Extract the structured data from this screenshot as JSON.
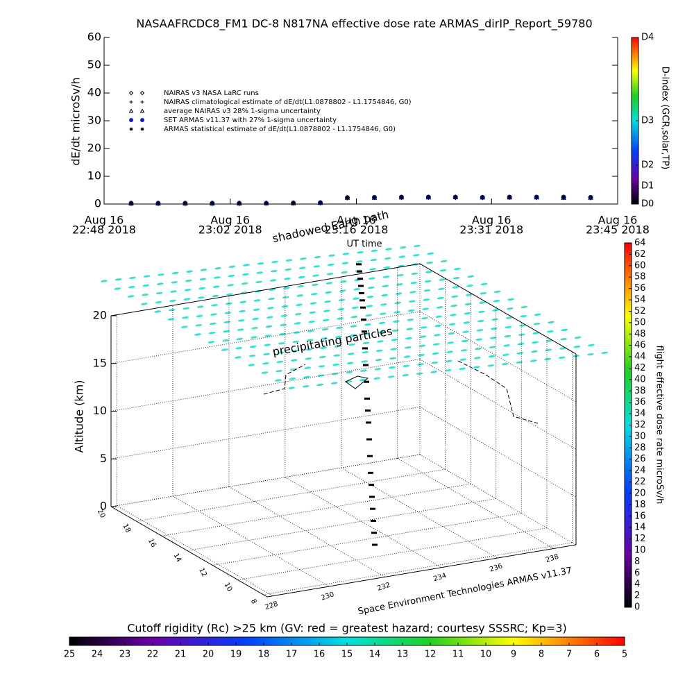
{
  "chart_data": [
    {
      "type": "line",
      "title": "NASAAFRCDC8_FM1 DC-8   N817NA effective dose rate ARMAS_dirIP_Report_59780",
      "ylabel": "dE/dt microSv/h",
      "xlabel": "UT time",
      "ylim": [
        0,
        60
      ],
      "yticks": [
        0,
        10,
        20,
        30,
        40,
        50,
        60
      ],
      "xlim": [
        "2018-08-16T22:48",
        "2018-08-16T23:45"
      ],
      "xticks": [
        {
          "value": "2018-08-16T22:48",
          "label": [
            "Aug 16",
            "22:48 2018"
          ]
        },
        {
          "value": "2018-08-16T23:02",
          "label": [
            "Aug 16",
            "23:02 2018"
          ]
        },
        {
          "value": "2018-08-16T23:16",
          "label": [
            "Aug 16",
            "23:16 2018"
          ]
        },
        {
          "value": "2018-08-16T23:31",
          "label": [
            "Aug 16",
            "23:31 2018"
          ]
        },
        {
          "value": "2018-08-16T23:45",
          "label": [
            "Aug 16",
            "23:45 2018"
          ]
        }
      ],
      "x": [
        "2018-08-16T22:51",
        "2018-08-16T22:54",
        "2018-08-16T22:57",
        "2018-08-16T23:00",
        "2018-08-16T23:03",
        "2018-08-16T23:06",
        "2018-08-16T23:09",
        "2018-08-16T23:12",
        "2018-08-16T23:15",
        "2018-08-16T23:18",
        "2018-08-16T23:21",
        "2018-08-16T23:24",
        "2018-08-16T23:27",
        "2018-08-16T23:30",
        "2018-08-16T23:33",
        "2018-08-16T23:36",
        "2018-08-16T23:39",
        "2018-08-16T23:42"
      ],
      "series": [
        {
          "name": "NAIRAS v3 NASA LaRC runs",
          "marker": "diamond",
          "color": "#000000",
          "values": [
            0.2,
            0.2,
            0.2,
            0.2,
            0.2,
            0.3,
            0.3,
            0.4,
            2.2,
            2.3,
            2.4,
            2.4,
            2.4,
            2.3,
            2.4,
            2.4,
            2.3,
            2.3
          ]
        },
        {
          "name": "NAIRAS climatological estimate of dE/dt(L1.0878802 - L1.1754846, G0)",
          "marker": "plus",
          "color": "#000000",
          "values": [
            0.1,
            0.1,
            0.1,
            0.1,
            0.2,
            0.2,
            0.2,
            0.3,
            2.1,
            2.2,
            2.2,
            2.3,
            2.2,
            2.2,
            2.3,
            2.2,
            2.2,
            2.1
          ]
        },
        {
          "name": "average NAIRAS v3 28% 1-sigma uncertainty",
          "marker": "triangle",
          "color": "#000000",
          "values": [
            0.2,
            0.2,
            0.2,
            0.2,
            0.2,
            0.3,
            0.3,
            0.4,
            2.3,
            2.3,
            2.4,
            2.4,
            2.5,
            2.4,
            2.4,
            2.4,
            2.3,
            2.3
          ]
        },
        {
          "name": "SET ARMAS v11.37 with 27% 1-sigma uncertainty",
          "marker": "dot",
          "color": "#1020c0",
          "values": [
            0.3,
            0.3,
            0.3,
            0.3,
            0.3,
            0.3,
            0.4,
            0.5,
            2.3,
            2.4,
            2.5,
            2.5,
            2.5,
            2.4,
            2.5,
            2.5,
            2.5,
            2.4
          ]
        },
        {
          "name": "ARMAS statistical estimate of dE/dt(L1.0878802 - L1.1754846, G0)",
          "marker": "asterisk",
          "color": "#000000",
          "values": [
            0.3,
            0.3,
            0.3,
            0.3,
            0.3,
            0.3,
            0.4,
            0.5,
            2.3,
            2.4,
            2.5,
            2.5,
            2.5,
            2.4,
            2.5,
            2.5,
            2.5,
            2.4
          ]
        }
      ]
    },
    {
      "type": "colorbar",
      "title": "D-index (GCR,solar,TP)",
      "lim": [
        0,
        60
      ],
      "ticks": [
        {
          "value": 0,
          "label": "D0"
        },
        {
          "value": 6.5,
          "label": "D1"
        },
        {
          "value": 14,
          "label": "D2"
        },
        {
          "value": 30,
          "label": "D3"
        },
        {
          "value": 60,
          "label": "D4"
        }
      ]
    },
    {
      "type": "box3d",
      "annotations": [
        "shadowed Earth path",
        "precipitating particles"
      ],
      "footer": "Space Environment Technologies ARMAS v11.37",
      "zlabel": "Altitude (km)",
      "zlim": [
        0,
        20
      ],
      "zticks": [
        0,
        5,
        10,
        15,
        20
      ],
      "rlim": [
        20,
        7.7
      ],
      "rticks": [
        20,
        18,
        16,
        14,
        12,
        10,
        8
      ],
      "lonlim": [
        227.8,
        238.8
      ],
      "lonticks": [
        228,
        230,
        232,
        234,
        236,
        238
      ],
      "altitude": [
        0,
        0.5,
        1,
        1.5,
        2,
        2.5,
        3,
        4,
        5,
        6,
        6.5,
        7,
        8,
        9,
        10,
        11,
        11.5,
        12,
        12,
        12,
        12,
        12,
        12,
        12
      ]
    },
    {
      "type": "colorbar",
      "title": "flight effective dose rate microSv/h",
      "lim": [
        0,
        64
      ],
      "ticks": [
        0,
        2,
        4,
        6,
        8,
        10,
        12,
        14,
        16,
        18,
        20,
        22,
        24,
        26,
        28,
        30,
        32,
        34,
        36,
        38,
        40,
        42,
        44,
        46,
        48,
        50,
        52,
        54,
        56,
        58,
        60,
        62,
        64
      ]
    },
    {
      "type": "colorbar",
      "title": "Cutoff rigidity (Rc) >25 km (GV: red = greatest hazard; courtesy SSSRC; Kp=3)",
      "lim": [
        25,
        5
      ],
      "ticks": [
        25,
        24,
        23,
        22,
        21,
        20,
        19,
        18,
        17,
        16,
        15,
        14,
        13,
        12,
        11,
        10,
        9,
        8,
        7,
        6,
        5
      ]
    }
  ]
}
